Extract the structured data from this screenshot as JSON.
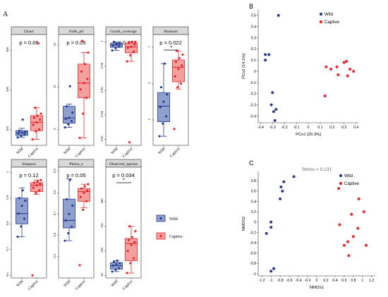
{
  "figure": {
    "panel_labels": [
      "A",
      "B",
      "C"
    ]
  },
  "legend": {
    "wild": "Wild",
    "captive": "Captive"
  },
  "colors": {
    "wild": "#2a3d8f",
    "captive": "#e8262b",
    "wild_fill": "#8fa0cf",
    "captive_fill": "#f4a09e"
  },
  "chart_data": [
    {
      "type": "box",
      "title": "Chao1",
      "p_text": "p = 0.06",
      "categories": [
        "Wild",
        "Captive"
      ],
      "ylim": [
        60,
        340
      ],
      "yticks": [
        100,
        200,
        300
      ],
      "series": [
        {
          "name": "Wild",
          "q1": 85,
          "median": 92,
          "q3": 97,
          "whisker_low": 80,
          "whisker_high": 103,
          "points": [
            80,
            84,
            88,
            90,
            92,
            95,
            97,
            125
          ]
        },
        {
          "name": "Captive",
          "q1": 97,
          "median": 118,
          "q3": 135,
          "whisker_low": 75,
          "whisker_high": 155,
          "points": [
            75,
            95,
            100,
            112,
            118,
            125,
            130,
            135,
            140,
            155,
            318
          ]
        }
      ],
      "significance": ""
    },
    {
      "type": "box",
      "title": "Faith_pd",
      "p_text": "p = 0.05",
      "categories": [
        "Wild",
        "Captive"
      ],
      "ylim": [
        6.5,
        17
      ],
      "yticks": [
        8,
        12,
        16
      ],
      "series": [
        {
          "name": "Wild",
          "q1": 8.6,
          "median": 9.1,
          "q3": 10.2,
          "whisker_low": 8.2,
          "whisker_high": 10.4,
          "points": [
            8.2,
            8.5,
            8.8,
            9.0,
            9.1,
            9.6,
            10.2,
            12.1
          ]
        },
        {
          "name": "Captive",
          "q1": 11.0,
          "median": 12.4,
          "q3": 14.2,
          "whisker_low": 7.2,
          "whisker_high": 15.3,
          "points": [
            7.2,
            9.5,
            11.0,
            11.8,
            12.4,
            12.8,
            13.5,
            14.2,
            15.3,
            16.4
          ]
        }
      ],
      "significance": ""
    },
    {
      "type": "box",
      "title": "Goods_coverage",
      "p_text": "p = 0.37",
      "categories": [
        "Wild",
        "Captive"
      ],
      "ylim": [
        0.915,
        1.006
      ],
      "yticks": [
        0.92,
        0.94,
        0.96,
        0.98,
        1.0
      ],
      "series": [
        {
          "name": "Wild",
          "q1": 0.9955,
          "median": 0.9975,
          "q3": 0.999,
          "whisker_low": 0.993,
          "whisker_high": 1.0,
          "points": [
            0.993,
            0.995,
            0.996,
            0.997,
            0.998,
            0.999,
            1.0,
            0.9985
          ]
        },
        {
          "name": "Captive",
          "q1": 0.991,
          "median": 0.996,
          "q3": 0.999,
          "whisker_low": 0.984,
          "whisker_high": 1.0,
          "points": [
            0.984,
            0.989,
            0.992,
            0.995,
            0.996,
            0.998,
            0.999,
            1.0,
            1.0,
            0.9175
          ]
        }
      ],
      "significance": ""
    },
    {
      "type": "box",
      "title": "Shannon",
      "p_text": "p = 0.022",
      "categories": [
        "Wild",
        "Captive"
      ],
      "ylim": [
        4.3,
        7.35
      ],
      "yticks": [
        5,
        6,
        7
      ],
      "series": [
        {
          "name": "Wild",
          "q1": 4.95,
          "median": 5.38,
          "q3": 5.75,
          "whisker_low": 4.55,
          "whisker_high": 6.55,
          "points": [
            4.55,
            4.9,
            5.1,
            5.35,
            5.5,
            5.7,
            5.9,
            6.55
          ]
        },
        {
          "name": "Captive",
          "q1": 6.05,
          "median": 6.45,
          "q3": 6.65,
          "whisker_low": 5.85,
          "whisker_high": 6.9,
          "points": [
            4.75,
            5.9,
            6.0,
            6.2,
            6.4,
            6.5,
            6.6,
            6.7,
            6.8,
            6.9
          ]
        }
      ],
      "significance": "*"
    },
    {
      "type": "box",
      "title": "Simpson",
      "p_text": "p = 0.12",
      "categories": [
        "Wild",
        "Captive"
      ],
      "ylim": [
        0.59,
        1.02
      ],
      "yticks": [
        0.6,
        0.7,
        0.8,
        0.9,
        1.0
      ],
      "series": [
        {
          "name": "Wild",
          "q1": 0.8,
          "median": 0.84,
          "q3": 0.9,
          "whisker_low": 0.75,
          "whisker_high": 0.94,
          "points": [
            0.75,
            0.79,
            0.82,
            0.84,
            0.87,
            0.89,
            0.9,
            0.93
          ]
        },
        {
          "name": "Captive",
          "q1": 0.925,
          "median": 0.95,
          "q3": 0.96,
          "whisker_low": 0.915,
          "whisker_high": 0.97,
          "points": [
            0.6,
            0.92,
            0.93,
            0.94,
            0.95,
            0.955,
            0.96,
            0.965,
            0.97
          ]
        }
      ],
      "significance": ""
    },
    {
      "type": "box",
      "title": "Pielou_e",
      "p_text": "p = 0.05",
      "categories": [
        "Wild",
        "Captive"
      ],
      "ylim": [
        0.4,
        0.92
      ],
      "yticks": [
        0.5,
        0.6,
        0.7,
        0.8,
        0.9
      ],
      "series": [
        {
          "name": "Wild",
          "q1": 0.635,
          "median": 0.67,
          "q3": 0.77,
          "whisker_low": 0.575,
          "whisker_high": 0.865,
          "points": [
            0.575,
            0.61,
            0.64,
            0.67,
            0.7,
            0.74,
            0.77,
            0.86
          ]
        },
        {
          "name": "Captive",
          "q1": 0.76,
          "median": 0.805,
          "q3": 0.82,
          "whisker_low": 0.73,
          "whisker_high": 0.84,
          "points": [
            0.46,
            0.72,
            0.76,
            0.78,
            0.8,
            0.81,
            0.82,
            0.83,
            0.84
          ]
        }
      ],
      "significance": ""
    },
    {
      "type": "box",
      "title": "Observed_species",
      "p_text": "p = 0.034",
      "categories": [
        "Wild",
        "Captive"
      ],
      "ylim": [
        45,
        270
      ],
      "yticks": [
        50,
        100,
        150,
        200
      ],
      "series": [
        {
          "name": "Wild",
          "q1": 63,
          "median": 70,
          "q3": 76,
          "whisker_low": 58,
          "whisker_high": 80,
          "points": [
            58,
            62,
            65,
            70,
            72,
            75,
            78,
            80
          ]
        },
        {
          "name": "Captive",
          "q1": 80,
          "median": 115,
          "q3": 125,
          "whisker_low": 55,
          "whisker_high": 150,
          "points": [
            55,
            75,
            85,
            100,
            112,
            118,
            122,
            128,
            140,
            150
          ]
        }
      ],
      "significance": "*"
    },
    {
      "type": "scatter",
      "title": "",
      "xlabel": "PCo1 [20.3%]",
      "ylabel": "PCo2 [14.1%]",
      "xlim": [
        -0.42,
        0.42
      ],
      "ylim": [
        -0.46,
        0.55
      ],
      "xticks": [
        -0.4,
        -0.3,
        -0.2,
        -0.1,
        0,
        0.1,
        0.2,
        0.3,
        0.4
      ],
      "yticks": [
        -0.4,
        -0.3,
        -0.2,
        -0.1,
        0,
        0.1,
        0.2,
        0.3,
        0.4,
        0.5
      ],
      "series": [
        {
          "name": "Wild",
          "x": [
            -0.25,
            -0.36,
            -0.33,
            -0.36,
            -0.3,
            -0.31,
            -0.29,
            -0.27,
            -0.28
          ],
          "y": [
            0.5,
            0.15,
            0.15,
            0.1,
            -0.19,
            -0.3,
            -0.36,
            -0.34,
            -0.44
          ]
        },
        {
          "name": "Captive",
          "x": [
            0.15,
            0.19,
            0.24,
            0.25,
            0.3,
            0.32,
            0.35,
            0.38,
            0.33,
            0.14
          ],
          "y": [
            0.04,
            0.02,
            0.04,
            -0.03,
            0.08,
            0.09,
            0.02,
            0.0,
            -0.04,
            -0.22
          ]
        }
      ]
    },
    {
      "type": "scatter",
      "title": "Stress = 0.131",
      "xlabel": "NMDS1",
      "ylabel": "NMDS2",
      "xlim": [
        -1.28,
        1.28
      ],
      "ylim": [
        -1.04,
        0.98
      ],
      "xticks": [
        -1.2,
        -1.0,
        -0.8,
        -0.6,
        -0.4,
        -0.2,
        0,
        0.2,
        0.4,
        0.6,
        0.8,
        1.0,
        1.2
      ],
      "yticks": [
        -1.0,
        -0.8,
        -0.6,
        -0.4,
        -0.2,
        0,
        0.2,
        0.4,
        0.6,
        0.8
      ],
      "series": [
        {
          "name": "Wild",
          "x": [
            -0.5,
            -0.72,
            -0.75,
            -0.8,
            -0.78,
            -1.0,
            -1.0,
            -1.1,
            -0.94,
            -1.0
          ],
          "y": [
            0.88,
            0.78,
            0.6,
            0.45,
            0.68,
            0.0,
            -0.1,
            -0.22,
            -0.9,
            -0.95
          ]
        },
        {
          "name": "Captive",
          "x": [
            0.48,
            0.92,
            1.03,
            0.76,
            0.5,
            0.9,
            0.8,
            0.68,
            0.6,
            0.7,
            1.08
          ],
          "y": [
            0.65,
            0.45,
            0.2,
            0.15,
            -0.05,
            -0.12,
            -0.28,
            -0.38,
            -0.45,
            -0.65,
            -0.45
          ]
        }
      ]
    }
  ]
}
